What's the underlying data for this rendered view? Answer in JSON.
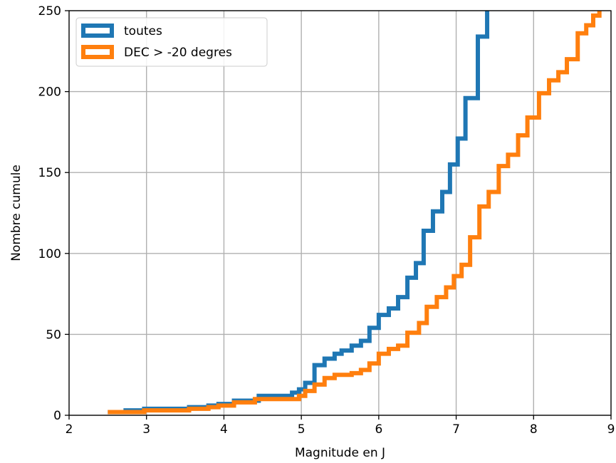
{
  "chart_data": {
    "type": "line",
    "step": true,
    "xlabel": "Magnitude en J",
    "ylabel": "Nombre cumule",
    "xlim": [
      2,
      9
    ],
    "ylim": [
      0,
      250
    ],
    "xticks": [
      2,
      3,
      4,
      5,
      6,
      7,
      8,
      9
    ],
    "yticks": [
      0,
      50,
      100,
      150,
      200,
      250
    ],
    "grid": true,
    "legend_position": "top-left",
    "series": [
      {
        "name": "toutes",
        "color": "#1f77b4",
        "x": [
          2.5,
          2.73,
          2.97,
          3.55,
          3.8,
          3.93,
          4.13,
          4.45,
          4.77,
          4.88,
          4.97,
          5.05,
          5.17,
          5.3,
          5.43,
          5.52,
          5.65,
          5.77,
          5.88,
          6.0,
          6.13,
          6.25,
          6.37,
          6.48,
          6.58,
          6.7,
          6.82,
          6.92,
          7.02,
          7.12,
          7.28,
          7.4
        ],
        "y": [
          2,
          3,
          4,
          5,
          6,
          7,
          9,
          12,
          12,
          14,
          16,
          20,
          31,
          35,
          38,
          40,
          43,
          46,
          54,
          62,
          66,
          73,
          85,
          94,
          114,
          126,
          138,
          155,
          171,
          196,
          234,
          250
        ]
      },
      {
        "name": "DEC > -20 degres",
        "color": "#ff7f0e",
        "x": [
          2.5,
          2.97,
          3.55,
          3.8,
          3.93,
          4.13,
          4.4,
          4.97,
          5.05,
          5.17,
          5.3,
          5.43,
          5.65,
          5.77,
          5.88,
          6.0,
          6.13,
          6.25,
          6.37,
          6.52,
          6.62,
          6.75,
          6.87,
          6.97,
          7.07,
          7.18,
          7.3,
          7.42,
          7.55,
          7.67,
          7.8,
          7.92,
          8.07,
          8.2,
          8.32,
          8.43,
          8.57,
          8.68,
          8.77,
          8.85
        ],
        "y": [
          2,
          3,
          4,
          5,
          6,
          8,
          10,
          12,
          15,
          19,
          23,
          25,
          26,
          28,
          32,
          38,
          41,
          43,
          51,
          57,
          67,
          73,
          79,
          86,
          93,
          110,
          129,
          138,
          154,
          161,
          173,
          184,
          199,
          207,
          212,
          220,
          236,
          241,
          247,
          250
        ]
      }
    ]
  }
}
